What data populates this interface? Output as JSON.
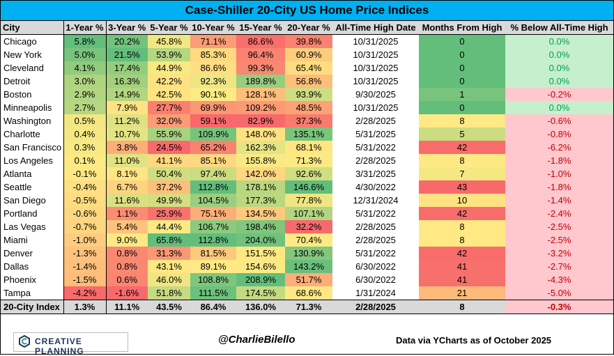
{
  "title": "Case-Shiller 20-City US Home Price Indices",
  "columns": [
    "City",
    "1-Year %",
    "3-Year %",
    "5-Year %",
    "10-Year %",
    "15-Year %",
    "20-Year %",
    "All-Time High Date",
    "Months From High",
    "% Below All-Time High"
  ],
  "rows": [
    {
      "city": "Chicago",
      "y1": "5.8%",
      "y3": "20.2%",
      "y5": "45.8%",
      "y10": "71.1%",
      "y15": "86.6%",
      "y20": "39.8%",
      "ath": "10/31/2025",
      "months": "0",
      "below": "0.0%"
    },
    {
      "city": "New York",
      "y1": "5.0%",
      "y3": "21.5%",
      "y5": "53.9%",
      "y10": "85.3%",
      "y15": "96.4%",
      "y20": "60.9%",
      "ath": "10/31/2025",
      "months": "0",
      "below": "0.0%"
    },
    {
      "city": "Cleveland",
      "y1": "4.1%",
      "y3": "17.4%",
      "y5": "44.9%",
      "y10": "86.6%",
      "y15": "99.3%",
      "y20": "65.4%",
      "ath": "10/31/2025",
      "months": "0",
      "below": "0.0%"
    },
    {
      "city": "Detroit",
      "y1": "3.0%",
      "y3": "16.3%",
      "y5": "42.2%",
      "y10": "92.3%",
      "y15": "189.8%",
      "y20": "56.8%",
      "ath": "10/31/2025",
      "months": "0",
      "below": "0.0%"
    },
    {
      "city": "Boston",
      "y1": "2.9%",
      "y3": "14.9%",
      "y5": "42.5%",
      "y10": "90.1%",
      "y15": "128.1%",
      "y20": "93.9%",
      "ath": "9/30/2025",
      "months": "1",
      "below": "-0.2%"
    },
    {
      "city": "Minneapolis",
      "y1": "2.7%",
      "y3": "7.9%",
      "y5": "27.7%",
      "y10": "69.9%",
      "y15": "109.2%",
      "y20": "48.5%",
      "ath": "10/31/2025",
      "months": "0",
      "below": "0.0%"
    },
    {
      "city": "Washington",
      "y1": "0.5%",
      "y3": "11.2%",
      "y5": "32.0%",
      "y10": "59.1%",
      "y15": "82.9%",
      "y20": "37.3%",
      "ath": "2/28/2025",
      "months": "8",
      "below": "-0.6%"
    },
    {
      "city": "Charlotte",
      "y1": "0.4%",
      "y3": "10.7%",
      "y5": "55.9%",
      "y10": "109.9%",
      "y15": "148.0%",
      "y20": "135.1%",
      "ath": "5/31/2025",
      "months": "5",
      "below": "-0.8%"
    },
    {
      "city": "San Francisco",
      "y1": "0.3%",
      "y3": "3.8%",
      "y5": "24.5%",
      "y10": "65.2%",
      "y15": "162.3%",
      "y20": "68.1%",
      "ath": "5/31/2022",
      "months": "42",
      "below": "-6.2%"
    },
    {
      "city": "Los Angeles",
      "y1": "0.1%",
      "y3": "11.0%",
      "y5": "41.1%",
      "y10": "85.1%",
      "y15": "155.8%",
      "y20": "71.3%",
      "ath": "2/28/2025",
      "months": "8",
      "below": "-1.8%"
    },
    {
      "city": "Atlanta",
      "y1": "-0.1%",
      "y3": "8.1%",
      "y5": "50.4%",
      "y10": "97.4%",
      "y15": "142.0%",
      "y20": "92.6%",
      "ath": "3/31/2025",
      "months": "7",
      "below": "-1.0%"
    },
    {
      "city": "Seattle",
      "y1": "-0.4%",
      "y3": "6.7%",
      "y5": "37.2%",
      "y10": "112.8%",
      "y15": "178.1%",
      "y20": "146.6%",
      "ath": "4/30/2022",
      "months": "43",
      "below": "-1.8%"
    },
    {
      "city": "San Diego",
      "y1": "-0.5%",
      "y3": "11.6%",
      "y5": "49.9%",
      "y10": "104.5%",
      "y15": "177.3%",
      "y20": "77.8%",
      "ath": "12/31/2024",
      "months": "10",
      "below": "-1.4%"
    },
    {
      "city": "Portland",
      "y1": "-0.6%",
      "y3": "1.1%",
      "y5": "25.9%",
      "y10": "75.1%",
      "y15": "134.5%",
      "y20": "107.1%",
      "ath": "5/31/2022",
      "months": "42",
      "below": "-2.4%"
    },
    {
      "city": "Las Vegas",
      "y1": "-0.7%",
      "y3": "5.4%",
      "y5": "44.4%",
      "y10": "106.7%",
      "y15": "198.4%",
      "y20": "32.2%",
      "ath": "2/28/2025",
      "months": "8",
      "below": "-2.5%"
    },
    {
      "city": "Miami",
      "y1": "-1.0%",
      "y3": "9.0%",
      "y5": "65.8%",
      "y10": "112.8%",
      "y15": "204.0%",
      "y20": "70.4%",
      "ath": "2/28/2025",
      "months": "8",
      "below": "-2.5%"
    },
    {
      "city": "Denver",
      "y1": "-1.3%",
      "y3": "0.8%",
      "y5": "31.3%",
      "y10": "81.5%",
      "y15": "151.5%",
      "y20": "130.9%",
      "ath": "5/31/2022",
      "months": "42",
      "below": "-3.2%"
    },
    {
      "city": "Dallas",
      "y1": "-1.4%",
      "y3": "0.8%",
      "y5": "43.1%",
      "y10": "89.1%",
      "y15": "154.6%",
      "y20": "143.2%",
      "ath": "6/30/2022",
      "months": "41",
      "below": "-2.7%"
    },
    {
      "city": "Phoenix",
      "y1": "-1.5%",
      "y3": "0.6%",
      "y5": "46.0%",
      "y10": "108.8%",
      "y15": "208.9%",
      "y20": "51.7%",
      "ath": "6/30/2022",
      "months": "41",
      "below": "-4.3%"
    },
    {
      "city": "Tampa",
      "y1": "-4.2%",
      "y3": "-1.6%",
      "y5": "51.8%",
      "y10": "111.5%",
      "y15": "174.5%",
      "y20": "68.6%",
      "ath": "1/31/2024",
      "months": "21",
      "below": "-5.0%"
    }
  ],
  "index_row": {
    "city": "20-City Index",
    "y1": "1.3%",
    "y3": "11.1%",
    "y5": "43.5%",
    "y10": "86.4%",
    "y15": "136.0%",
    "y20": "71.3%",
    "ath": "2/28/2025",
    "months": "8",
    "below": "-0.3%"
  },
  "footer": {
    "logo_text": "CREATIVE PLANNING",
    "handle": "@CharlieBilello",
    "source": "Data via YCharts as of October 2025"
  },
  "colors": {
    "title_bg": "#00b0f0",
    "header_bg": "#d9d9d9",
    "scale_low": "#f8696b",
    "scale_mid": "#ffeb84",
    "scale_high": "#63be7b",
    "below_zero_bg": "#c6efce",
    "below_neg_bg": "#ffc7ce",
    "below_zero_fg": "#00a050",
    "below_neg_fg": "#c00000",
    "logo_navy": "#1d3557",
    "logo_teal": "#2a9d8f"
  },
  "logo_icon": "creative-planning-logo-icon"
}
